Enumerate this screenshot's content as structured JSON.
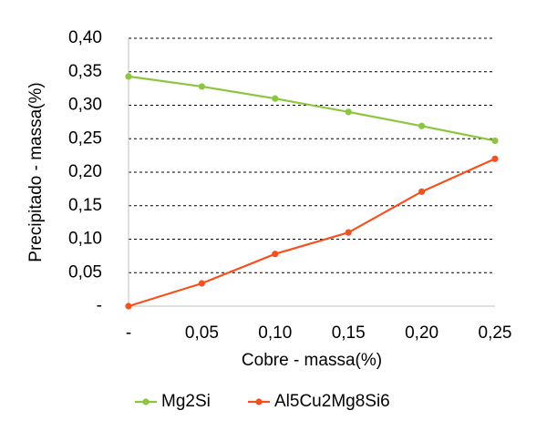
{
  "chart_data": {
    "type": "line",
    "x_label": "Cobre - massa(%)",
    "y_label": "Precipitado - massa(%)",
    "x": [
      0,
      0.05,
      0.1,
      0.15,
      0.2,
      0.25
    ],
    "series": [
      {
        "name": "Mg2Si",
        "color": "#8cc63f",
        "values": [
          0.343,
          0.328,
          0.31,
          0.29,
          0.269,
          0.247
        ]
      },
      {
        "name": "Al5Cu2Mg8Si6",
        "color": "#f4511e",
        "values": [
          0,
          0.034,
          0.078,
          0.11,
          0.171,
          0.22
        ]
      }
    ],
    "xlim": [
      0,
      0.25
    ],
    "xticks": [
      {
        "value": 0,
        "label": "-"
      },
      {
        "value": 0.05,
        "label": "0,05"
      },
      {
        "value": 0.1,
        "label": "0,10"
      },
      {
        "value": 0.15,
        "label": "0,15"
      },
      {
        "value": 0.2,
        "label": "0,20"
      },
      {
        "value": 0.25,
        "label": "0,25"
      }
    ],
    "ylim": [
      0,
      0.4
    ],
    "yticks": [
      {
        "value": 0,
        "label": "-"
      },
      {
        "value": 0.05,
        "label": "0,05"
      },
      {
        "value": 0.1,
        "label": "0,10"
      },
      {
        "value": 0.15,
        "label": "0,15"
      },
      {
        "value": 0.2,
        "label": "0,20"
      },
      {
        "value": 0.25,
        "label": "0,25"
      },
      {
        "value": 0.3,
        "label": "0,30"
      },
      {
        "value": 0.35,
        "label": "0,35"
      },
      {
        "value": 0.4,
        "label": "0,40"
      }
    ],
    "grid": true,
    "legend": "bottom"
  }
}
